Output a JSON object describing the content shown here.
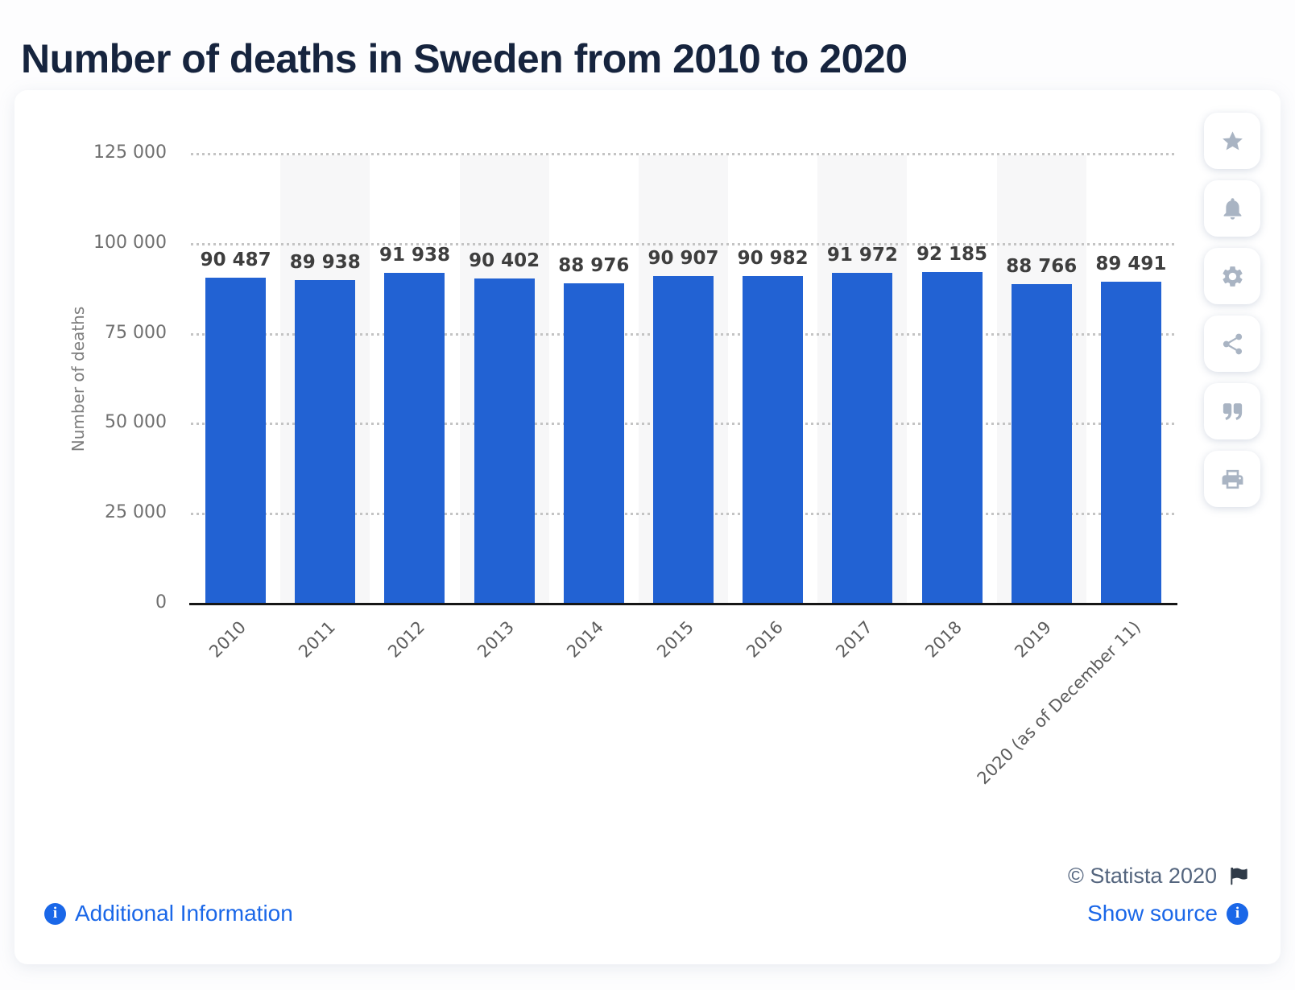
{
  "page_title": "Number of deaths in Sweden from 2010 to 2020",
  "chart_data": {
    "type": "bar",
    "title": "Number of deaths in Sweden from 2010 to 2020",
    "categories": [
      "2010",
      "2011",
      "2012",
      "2013",
      "2014",
      "2015",
      "2016",
      "2017",
      "2018",
      "2019",
      "2020 (as of December 11)"
    ],
    "values": [
      90487,
      89938,
      91938,
      90402,
      88976,
      90907,
      90982,
      91972,
      92185,
      88766,
      89491
    ],
    "value_labels": [
      "90 487",
      "89 938",
      "91 938",
      "90 402",
      "88 976",
      "90 907",
      "90 982",
      "91 972",
      "92 185",
      "88 766",
      "89 491"
    ],
    "xlabel": "",
    "ylabel": "Number of deaths",
    "ylim": [
      0,
      125000
    ],
    "yticks": [
      0,
      25000,
      50000,
      75000,
      100000,
      125000
    ],
    "ytick_labels": [
      "0",
      "25 000",
      "50 000",
      "75 000",
      "100 000",
      "125 000"
    ],
    "grid": "horizontal-dotted",
    "legend": "none",
    "bar_color": "#2262d3",
    "alt_band_color": "#f7f7f8"
  },
  "toolbar": {
    "icons": [
      "star-icon",
      "bell-icon",
      "gear-icon",
      "share-icon",
      "quote-icon",
      "print-icon"
    ]
  },
  "footer": {
    "copyright": "© Statista 2020",
    "additional_info_label": "Additional Information",
    "show_source_label": "Show source",
    "info_glyph": "i"
  },
  "colors": {
    "title": "#16243e",
    "bar": "#2262d3",
    "link": "#1a67e8",
    "copyright_text": "#54657e",
    "toolbar_icon": "#a9b4c3"
  }
}
